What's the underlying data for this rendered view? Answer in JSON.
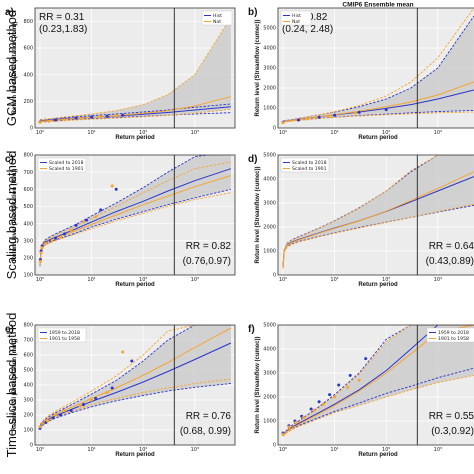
{
  "row_labels": [
    "GCM based method",
    "Scaling based method",
    "Time-slice based method"
  ],
  "colors": {
    "series1": "#2b35c8",
    "series2": "#f5a433",
    "band": "#c8c8c8",
    "vline": "#222222"
  },
  "chart_data": [
    {
      "panel": "a)",
      "type": "line",
      "title": "",
      "xlabel": "Return period",
      "ylabel": "Return level (Precipitation (mm))",
      "xscale": "log",
      "xlim": [
        0.8,
        6000
      ],
      "ylim": [
        0,
        900
      ],
      "yticks": [
        0,
        200,
        400,
        600,
        800
      ],
      "xticklabels": [
        "10⁰",
        "10¹",
        "10²",
        "10³"
      ],
      "legend": [
        "Hist",
        "Nat"
      ],
      "legend_loc": "top-right",
      "vline_x": 400,
      "rr_text": "RR = 0.31",
      "ci_text": "(0.23,1.83)",
      "rr_pos": "top-left",
      "series": [
        {
          "name": "Hist",
          "x": [
            1,
            2,
            5,
            10,
            30,
            100,
            300,
            1000,
            5000
          ],
          "central": [
            55,
            64,
            74,
            80,
            90,
            103,
            116,
            135,
            160
          ],
          "lower": [
            48,
            55,
            64,
            70,
            78,
            88,
            96,
            105,
            115
          ],
          "upper": [
            62,
            72,
            84,
            92,
            105,
            120,
            135,
            155,
            180
          ],
          "band": false
        },
        {
          "name": "Nat",
          "x": [
            1,
            2,
            5,
            10,
            30,
            100,
            300,
            1000,
            5000
          ],
          "central": [
            50,
            60,
            72,
            80,
            92,
            110,
            130,
            165,
            235
          ],
          "lower": [
            42,
            50,
            60,
            66,
            74,
            84,
            95,
            110,
            140
          ],
          "upper": [
            60,
            75,
            92,
            105,
            130,
            175,
            250,
            400,
            830
          ],
          "band": true
        }
      ],
      "points": [
        {
          "series": "Hist",
          "x": [
            1,
            1.5,
            2,
            3,
            5,
            10,
            20,
            40
          ],
          "y": [
            45,
            55,
            60,
            68,
            75,
            82,
            88,
            95
          ]
        },
        {
          "series": "Nat",
          "x": [
            1,
            1.5,
            3,
            6,
            15,
            30
          ],
          "y": [
            42,
            50,
            62,
            72,
            84,
            92
          ]
        }
      ]
    },
    {
      "panel": "b)",
      "type": "line",
      "title": "CMIP6 Ensemble mean",
      "xlabel": "Return period",
      "ylabel": "Return level (Streamflow (cumec))",
      "xscale": "log",
      "xlim": [
        0.8,
        6000
      ],
      "ylim": [
        0,
        6000
      ],
      "yticks": [
        0,
        1000,
        2000,
        3000,
        4000,
        5000
      ],
      "xticklabels": [
        "10⁰",
        "10¹",
        "10²",
        "10³"
      ],
      "legend": [
        "Hist",
        "Nat"
      ],
      "legend_loc": "top-left",
      "vline_x": 400,
      "rr_text": "RR = 0.82",
      "ci_text": "(0.24, 2.48)",
      "rr_pos": "top-left",
      "series": [
        {
          "name": "Hist",
          "x": [
            1,
            2,
            5,
            10,
            30,
            100,
            300,
            1000,
            5000
          ],
          "central": [
            320,
            430,
            560,
            650,
            800,
            980,
            1170,
            1450,
            1900
          ],
          "lower": [
            300,
            390,
            480,
            540,
            620,
            690,
            760,
            820,
            880
          ],
          "upper": [
            350,
            480,
            660,
            800,
            1060,
            1450,
            2000,
            3000,
            5600
          ],
          "band": true
        },
        {
          "name": "Nat",
          "x": [
            1,
            2,
            5,
            10,
            30,
            100,
            300,
            1000,
            5000
          ],
          "central": [
            300,
            420,
            560,
            660,
            840,
            1060,
            1300,
            1650,
            2300
          ],
          "lower": [
            290,
            380,
            470,
            530,
            600,
            660,
            710,
            760,
            800
          ],
          "upper": [
            330,
            470,
            660,
            820,
            1120,
            1600,
            2300,
            3500,
            6000
          ],
          "band": false
        }
      ],
      "points": [
        {
          "series": "Hist",
          "x": [
            1,
            2,
            5,
            10,
            30,
            100
          ],
          "y": [
            280,
            400,
            540,
            640,
            780,
            920
          ]
        },
        {
          "series": "Nat",
          "x": [
            1,
            3,
            8,
            25
          ],
          "y": [
            260,
            450,
            600,
            760
          ]
        }
      ]
    },
    {
      "panel": "c)",
      "type": "line",
      "title": "",
      "xlabel": "Return period",
      "ylabel": "Return level (Precipitation (mm))",
      "xscale": "log",
      "xlim": [
        0.8,
        6000
      ],
      "ylim": [
        100,
        800
      ],
      "yticks": [
        100,
        200,
        300,
        400,
        500,
        600,
        700,
        800
      ],
      "xticklabels": [
        "10⁰",
        "10¹",
        "10²",
        "10³"
      ],
      "legend": [
        "Scaled to 2018",
        "Scaled to 1901"
      ],
      "legend_loc": "top-left",
      "vline_x": 400,
      "rr_text": "RR = 0.82",
      "ci_text": "(0.76,0.97)",
      "rr_pos": "bottom-right",
      "series": [
        {
          "name": "Scaled to 2018",
          "x": [
            1,
            1.05,
            1.2,
            1.5,
            2,
            5,
            10,
            30,
            100,
            300,
            1000,
            5000
          ],
          "central": [
            160,
            250,
            285,
            305,
            320,
            370,
            410,
            470,
            530,
            590,
            650,
            720
          ],
          "lower": [
            150,
            240,
            275,
            290,
            305,
            345,
            380,
            425,
            470,
            510,
            550,
            600
          ],
          "upper": [
            170,
            260,
            300,
            320,
            340,
            395,
            445,
            520,
            610,
            700,
            790,
            820
          ],
          "band": true
        },
        {
          "name": "Scaled to 1901",
          "x": [
            1,
            1.05,
            1.2,
            1.5,
            2,
            5,
            10,
            30,
            100,
            300,
            1000,
            5000
          ],
          "central": [
            165,
            245,
            280,
            300,
            315,
            360,
            395,
            450,
            510,
            560,
            615,
            680
          ],
          "lower": [
            155,
            235,
            270,
            285,
            300,
            340,
            370,
            415,
            460,
            500,
            540,
            580
          ],
          "upper": [
            175,
            255,
            295,
            315,
            335,
            385,
            430,
            500,
            580,
            650,
            720,
            760
          ],
          "band": false
        }
      ],
      "points": [
        {
          "series": "Scaled to 2018",
          "x": [
            1.02,
            1.05,
            1.1,
            1.3,
            1.6,
            2,
            3,
            5,
            8,
            15,
            30
          ],
          "y": [
            190,
            240,
            270,
            290,
            300,
            315,
            340,
            390,
            420,
            480,
            600
          ]
        },
        {
          "series": "Scaled to 1901",
          "x": [
            1.02,
            1.05,
            1.1,
            1.3,
            1.7,
            2.5,
            4,
            7,
            12,
            25
          ],
          "y": [
            180,
            230,
            260,
            285,
            300,
            320,
            360,
            410,
            440,
            620
          ]
        }
      ]
    },
    {
      "panel": "d)",
      "type": "line",
      "title": "",
      "xlabel": "Return period",
      "ylabel": "Return level (Streamflow (cumec))",
      "xscale": "log",
      "xlim": [
        0.8,
        6000
      ],
      "ylim": [
        0,
        5000
      ],
      "yticks": [
        0,
        1000,
        2000,
        3000,
        4000,
        5000
      ],
      "xticklabels": [
        "10⁰",
        "10¹",
        "10²",
        "10³"
      ],
      "legend": [
        "Scaled to 2018",
        "Scaled to 1901"
      ],
      "legend_loc": "top-left",
      "vline_x": 400,
      "rr_text": "RR = 0.64",
      "ci_text": "(0.43,0.89)",
      "rr_pos": "bottom-right",
      "series": [
        {
          "name": "Scaled to 2018",
          "x": [
            1,
            1.05,
            1.2,
            1.5,
            2,
            5,
            10,
            30,
            100,
            300,
            1000,
            5000
          ],
          "central": [
            300,
            1000,
            1250,
            1380,
            1480,
            1760,
            1960,
            2260,
            2650,
            3050,
            3500,
            4100
          ],
          "lower": [
            280,
            950,
            1180,
            1300,
            1390,
            1610,
            1760,
            1980,
            2200,
            2400,
            2620,
            2900
          ],
          "upper": [
            320,
            1050,
            1320,
            1470,
            1590,
            1960,
            2260,
            2800,
            3500,
            4300,
            5000,
            5000
          ],
          "band": true
        },
        {
          "name": "Scaled to 1901",
          "x": [
            1,
            1.05,
            1.2,
            1.5,
            2,
            5,
            10,
            30,
            100,
            300,
            1000,
            5000
          ],
          "central": [
            290,
            980,
            1230,
            1360,
            1460,
            1740,
            1940,
            2250,
            2660,
            3100,
            3600,
            4300
          ],
          "lower": [
            270,
            930,
            1160,
            1280,
            1370,
            1590,
            1740,
            1960,
            2190,
            2400,
            2640,
            2950
          ],
          "upper": [
            310,
            1030,
            1300,
            1450,
            1570,
            1940,
            2240,
            2780,
            3500,
            4350,
            5000,
            5000
          ],
          "band": false
        }
      ],
      "points": []
    },
    {
      "panel": "e)",
      "type": "line",
      "title": "",
      "xlabel": "Return period",
      "ylabel": "Return level (Precipitation (mm))",
      "xscale": "log",
      "xlim": [
        0.8,
        6000
      ],
      "ylim": [
        0,
        800
      ],
      "yticks": [
        0,
        100,
        200,
        300,
        400,
        500,
        600,
        700,
        800
      ],
      "xticklabels": [
        "10⁰",
        "10¹",
        "10²",
        "10³"
      ],
      "legend": [
        "1959 to 2018",
        "1901 to 1958"
      ],
      "legend_loc": "top-left",
      "vline_x": 400,
      "rr_text": "RR = 0.76",
      "ci_text": "(0.68, 0.99)",
      "rr_pos": "bottom-right",
      "series": [
        {
          "name": "1959 to 2018",
          "x": [
            1,
            1.2,
            1.5,
            2,
            5,
            10,
            30,
            100,
            300,
            1000,
            5000
          ],
          "central": [
            120,
            150,
            175,
            195,
            250,
            290,
            350,
            420,
            490,
            570,
            680
          ],
          "lower": [
            110,
            140,
            160,
            180,
            225,
            255,
            295,
            330,
            360,
            385,
            410
          ],
          "upper": [
            130,
            165,
            190,
            215,
            285,
            340,
            430,
            560,
            700,
            800,
            800
          ],
          "band": true
        },
        {
          "name": "1901 to 1958",
          "x": [
            1,
            1.2,
            1.5,
            2,
            5,
            10,
            30,
            100,
            300,
            1000,
            5000
          ],
          "central": [
            125,
            155,
            180,
            205,
            265,
            310,
            380,
            465,
            550,
            650,
            780
          ],
          "lower": [
            115,
            145,
            165,
            190,
            235,
            270,
            310,
            350,
            380,
            410,
            440
          ],
          "upper": [
            140,
            170,
            200,
            225,
            300,
            360,
            460,
            600,
            760,
            800,
            800
          ],
          "band": false
        }
      ],
      "points": [
        {
          "series": "1959 to 2018",
          "x": [
            1,
            1.3,
            1.8,
            2.5,
            4,
            7,
            12,
            25,
            60
          ],
          "y": [
            110,
            150,
            180,
            200,
            230,
            270,
            310,
            380,
            560
          ]
        },
        {
          "series": "1901 to 1958",
          "x": [
            1,
            1.4,
            2,
            3,
            6,
            10,
            20,
            40
          ],
          "y": [
            120,
            160,
            200,
            230,
            260,
            300,
            350,
            620
          ]
        }
      ]
    },
    {
      "panel": "f)",
      "type": "line",
      "title": "",
      "xlabel": "Return period",
      "ylabel": "Return level (Streamflow (cumec))",
      "xscale": "log",
      "xlim": [
        0.8,
        6000
      ],
      "ylim": [
        0,
        5000
      ],
      "yticks": [
        0,
        1000,
        2000,
        3000,
        4000,
        5000
      ],
      "xticklabels": [
        "10⁰",
        "10¹",
        "10²",
        "10³"
      ],
      "legend": [
        "1959 to 2018",
        "1901 to 1958"
      ],
      "legend_loc": "top-right",
      "vline_x": 400,
      "rr_text": "RR = 0.55",
      "ci_text": "(0.3,0.92)",
      "rr_pos": "bottom-right",
      "series": [
        {
          "name": "1959 to 2018",
          "x": [
            1,
            1.2,
            1.5,
            2,
            5,
            10,
            30,
            100,
            300,
            1000,
            5000
          ],
          "central": [
            400,
            600,
            750,
            900,
            1350,
            1700,
            2300,
            3100,
            4000,
            5000,
            5000
          ],
          "lower": [
            380,
            560,
            690,
            810,
            1150,
            1400,
            1750,
            2150,
            2450,
            2800,
            3200
          ],
          "upper": [
            420,
            640,
            820,
            1000,
            1600,
            2100,
            3000,
            4400,
            5000,
            5000,
            5000
          ],
          "band": false
        },
        {
          "name": "1901 to 1958",
          "x": [
            1,
            1.2,
            1.5,
            2,
            5,
            10,
            30,
            100,
            300,
            1000,
            5000
          ],
          "central": [
            380,
            560,
            700,
            850,
            1300,
            1650,
            2250,
            3000,
            3800,
            4700,
            5000
          ],
          "lower": [
            360,
            520,
            640,
            770,
            1100,
            1350,
            1650,
            2000,
            2300,
            2600,
            2900
          ],
          "upper": [
            400,
            600,
            780,
            960,
            1550,
            2050,
            2950,
            4300,
            5000,
            5000,
            5000
          ],
          "band": true
        }
      ],
      "points": [
        {
          "series": "1959 to 2018",
          "x": [
            1,
            1.3,
            1.7,
            2.3,
            3.5,
            5,
            8,
            12,
            20,
            40
          ],
          "y": [
            500,
            800,
            1000,
            1200,
            1500,
            1800,
            2100,
            2500,
            2900,
            3600
          ]
        },
        {
          "series": "1901 to 1958",
          "x": [
            1,
            1.3,
            1.8,
            2.5,
            4,
            6,
            10,
            18,
            30
          ],
          "y": [
            450,
            750,
            950,
            1150,
            1450,
            1700,
            2000,
            2400,
            2700
          ]
        }
      ]
    }
  ]
}
